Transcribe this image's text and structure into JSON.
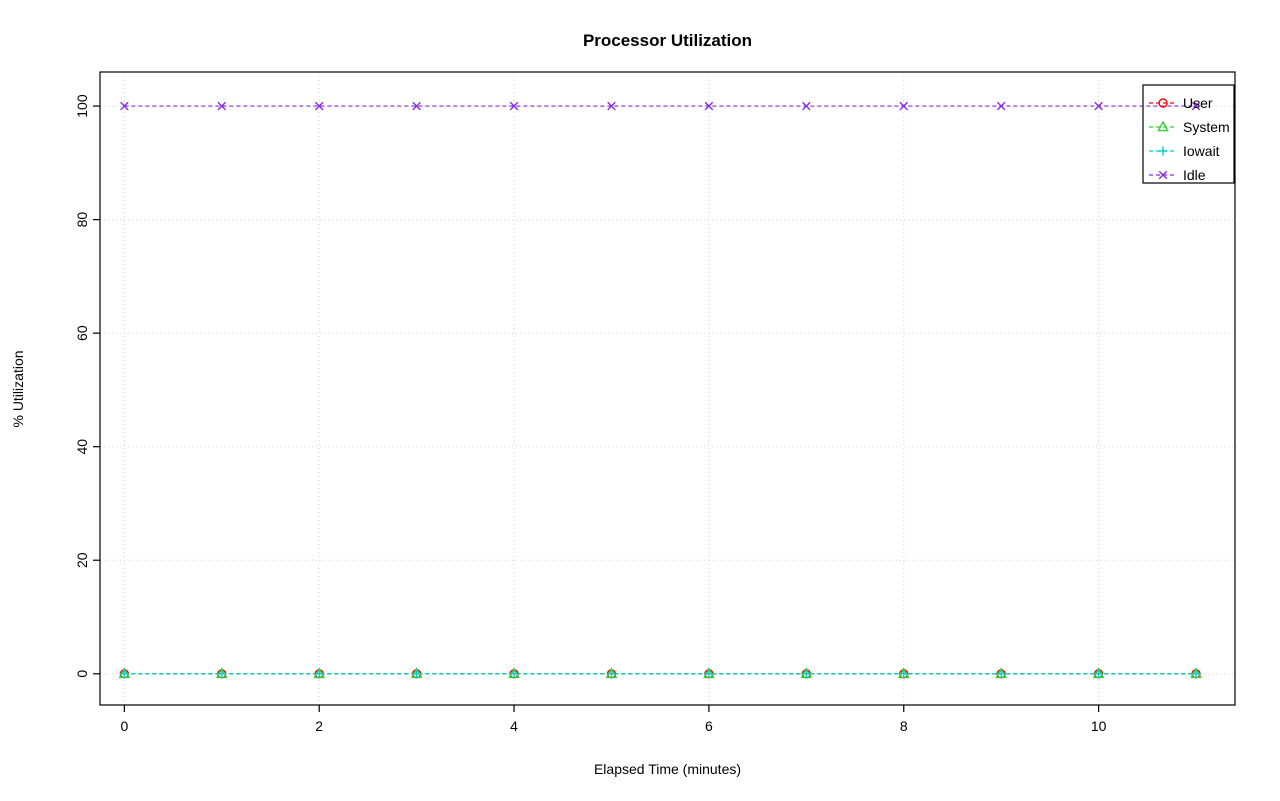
{
  "chart_data": {
    "type": "line",
    "title": "Processor Utilization",
    "xlabel": "Elapsed Time (minutes)",
    "ylabel": "% Utilization",
    "x": [
      0,
      1,
      2,
      3,
      4,
      5,
      6,
      7,
      8,
      9,
      10,
      11
    ],
    "series": [
      {
        "name": "User",
        "color": "#FF0000",
        "marker": "circle",
        "values": [
          0,
          0,
          0,
          0,
          0,
          0,
          0,
          0,
          0,
          0,
          0,
          0
        ]
      },
      {
        "name": "System",
        "color": "#33CC33",
        "marker": "triangle",
        "values": [
          0,
          0,
          0,
          0,
          0,
          0,
          0,
          0,
          0,
          0,
          0,
          0
        ]
      },
      {
        "name": "Iowait",
        "color": "#00CDCD",
        "marker": "plus",
        "values": [
          0,
          0,
          0,
          0,
          0,
          0,
          0,
          0,
          0,
          0,
          0,
          0
        ]
      },
      {
        "name": "Idle",
        "color": "#8A2BE2",
        "marker": "x",
        "values": [
          100,
          100,
          100,
          100,
          100,
          100,
          100,
          100,
          100,
          100,
          100,
          100
        ]
      }
    ],
    "xticks": [
      0,
      2,
      4,
      6,
      8,
      10
    ],
    "yticks": [
      0,
      20,
      40,
      60,
      80,
      100
    ],
    "xlim": [
      -0.25,
      11.4
    ],
    "ylim": [
      -5.5,
      106
    ],
    "grid": "dotted",
    "line_style": "dashed",
    "legend_position": "top-right"
  },
  "colors": {
    "grid": "#D3D3D3",
    "frame": "#000000",
    "background": "#FFFFFF"
  }
}
